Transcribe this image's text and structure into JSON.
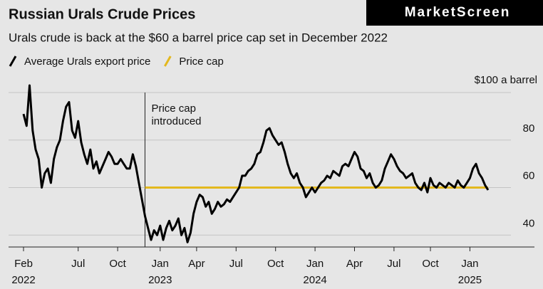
{
  "chart_data": {
    "type": "line",
    "title": "Russian Urals Crude Prices",
    "subtitle": "Urals crude is back at the $60 a barrel price cap set in December 2022",
    "brand": "MarketScreen",
    "annotation": [
      "Price cap",
      "introduced"
    ],
    "categories": [
      "Feb 2022",
      null,
      null,
      null,
      null,
      null,
      null,
      null,
      null,
      null,
      null,
      null,
      null,
      null,
      null,
      null,
      null,
      null,
      "Jul",
      null,
      null,
      null,
      null,
      null,
      null,
      null,
      null,
      null,
      null,
      null,
      null,
      "Oct",
      null,
      null,
      null,
      null,
      null,
      null,
      null,
      null,
      null,
      null,
      null,
      null,
      null,
      "Jan 2023",
      null,
      null,
      null,
      null,
      null,
      null,
      null,
      null,
      null,
      null,
      null,
      "Apr",
      null,
      null,
      null,
      null,
      null,
      null,
      null,
      null,
      null,
      null,
      null,
      null,
      "Jul",
      null,
      null,
      null,
      null,
      null,
      null,
      null,
      null,
      null,
      null,
      null,
      null,
      "Oct",
      null,
      null,
      null,
      null,
      null,
      null,
      null,
      null,
      null,
      null,
      null,
      null,
      "Jan 2024",
      null,
      null,
      null,
      null,
      null,
      null,
      null,
      null,
      null,
      null,
      null,
      null,
      "Apr",
      null,
      null,
      null,
      null,
      null,
      null,
      null,
      null,
      null,
      null,
      null,
      null,
      "Jul",
      null,
      null,
      null,
      null,
      null,
      null,
      null,
      null,
      null,
      null,
      null,
      "Oct",
      null,
      null,
      null,
      null,
      null,
      null,
      null,
      null,
      null,
      null,
      null,
      null,
      "Jan 2025",
      null,
      null,
      null,
      null,
      null,
      null
    ],
    "series": [
      {
        "name": "Average Urals export price",
        "color": "#000000",
        "values": [
          91,
          86,
          103,
          84,
          76,
          72,
          60,
          66,
          68,
          62,
          72,
          77,
          80,
          88,
          94,
          96,
          84,
          81,
          88,
          79,
          74,
          70,
          76,
          68,
          71,
          66,
          69,
          72,
          75,
          73,
          70,
          70,
          72,
          70,
          68,
          68,
          74,
          69,
          62,
          55,
          48,
          43,
          38,
          42,
          40,
          44,
          38,
          43,
          46,
          42,
          44,
          47,
          40,
          43,
          37,
          41,
          49,
          54,
          57,
          56,
          52,
          54,
          49,
          51,
          54,
          52,
          53,
          55,
          54,
          56,
          58,
          60,
          65,
          65,
          67,
          68,
          70,
          74,
          75,
          79,
          84,
          85,
          82,
          80,
          78,
          79,
          75,
          70,
          66,
          64,
          66,
          62,
          60,
          56,
          58,
          60,
          58,
          60,
          62,
          63,
          65,
          64,
          67,
          66,
          65,
          69,
          70,
          69,
          72,
          75,
          73,
          68,
          67,
          64,
          66,
          62,
          60,
          61,
          63,
          68,
          71,
          74,
          72,
          69,
          67,
          66,
          64,
          65,
          66,
          62,
          60,
          59,
          62,
          58,
          64,
          61,
          60,
          62,
          61,
          60,
          62,
          61,
          60,
          63,
          61,
          60,
          62,
          64,
          68,
          70,
          66,
          64,
          61,
          59
        ]
      },
      {
        "name": "Price cap",
        "color": "#e3b81e",
        "values": [
          null,
          null,
          null,
          null,
          null,
          null,
          null,
          null,
          null,
          null,
          null,
          null,
          null,
          null,
          null,
          null,
          null,
          null,
          null,
          null,
          null,
          null,
          null,
          null,
          null,
          null,
          null,
          null,
          null,
          null,
          null,
          null,
          null,
          null,
          null,
          null,
          null,
          null,
          null,
          null,
          60,
          60,
          60,
          60,
          60,
          60,
          60,
          60,
          60,
          60,
          60,
          60,
          60,
          60,
          60,
          60,
          60,
          60,
          60,
          60,
          60,
          60,
          60,
          60,
          60,
          60,
          60,
          60,
          60,
          60,
          60,
          60,
          60,
          60,
          60,
          60,
          60,
          60,
          60,
          60,
          60,
          60,
          60,
          60,
          60,
          60,
          60,
          60,
          60,
          60,
          60,
          60,
          60,
          60,
          60,
          60,
          60,
          60,
          60,
          60,
          60,
          60,
          60,
          60,
          60,
          60,
          60,
          60,
          60,
          60,
          60,
          60,
          60,
          60,
          60,
          60,
          60,
          60,
          60,
          60,
          60,
          60,
          60,
          60,
          60,
          60,
          60,
          60,
          60,
          60,
          60,
          60,
          60,
          60,
          60,
          60,
          60,
          60,
          60,
          60,
          60,
          60,
          60,
          60,
          60,
          60,
          60,
          60,
          60,
          60,
          60,
          60,
          60,
          60
        ]
      }
    ],
    "ylim": [
      35,
      106
    ],
    "yticks": [
      40,
      60,
      80,
      {
        "value": 100,
        "label": "$100 a barrel"
      }
    ],
    "grid": true
  }
}
